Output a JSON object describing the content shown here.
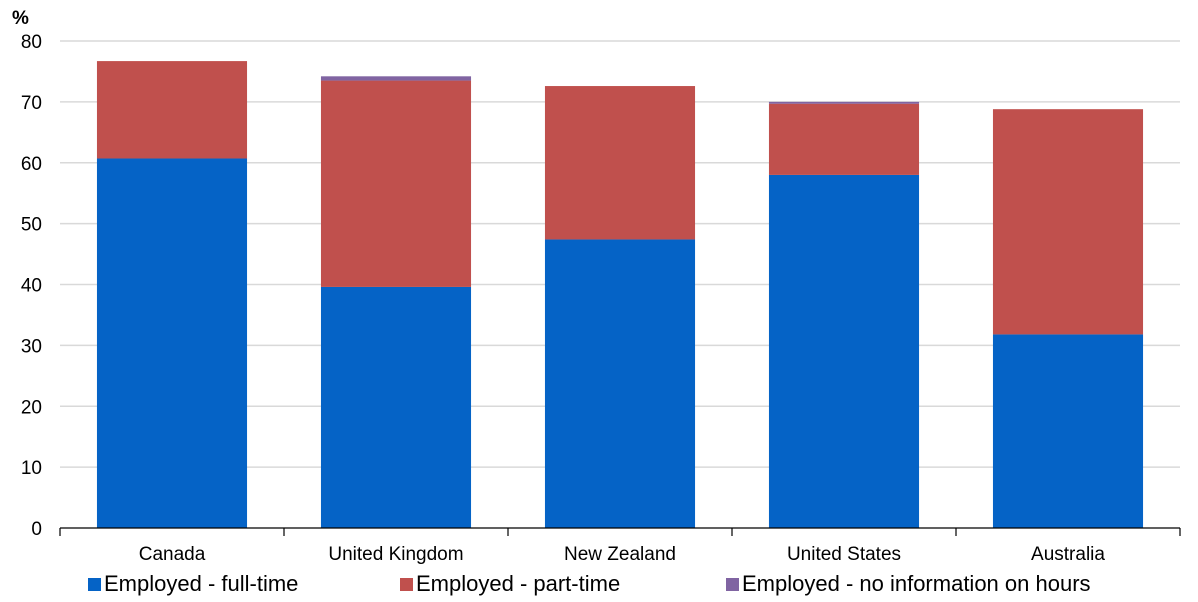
{
  "chart_data": {
    "type": "bar",
    "stacked": true,
    "title": "",
    "ylabel": "%",
    "xlabel": "",
    "categories": [
      "Canada",
      "United Kingdom",
      "New Zealand",
      "United States",
      "Australia"
    ],
    "series": [
      {
        "name": "Employed - full-time",
        "color": "#0563C6",
        "values": [
          60.7,
          39.6,
          47.4,
          58.0,
          31.8
        ]
      },
      {
        "name": "Employed - part-time",
        "color": "#C0504D",
        "values": [
          16.0,
          33.9,
          25.2,
          11.7,
          37.0
        ]
      },
      {
        "name": "Employed - no information on hours",
        "color": "#8064A2",
        "values": [
          0.0,
          0.7,
          0.0,
          0.3,
          0.0
        ]
      }
    ],
    "ylim": [
      0,
      80
    ],
    "yticks": [
      "0",
      "10",
      "20",
      "30",
      "40",
      "50",
      "60",
      "70",
      "80"
    ],
    "grid": true,
    "legend_position": "bottom"
  }
}
